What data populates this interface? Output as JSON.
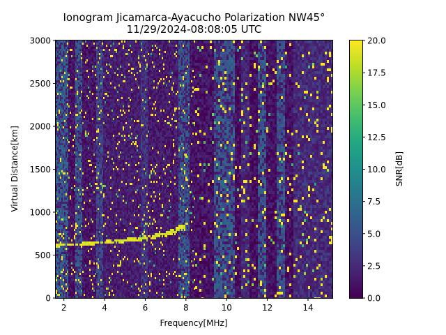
{
  "chart_data": {
    "type": "heatmap",
    "title": "Ionogram Jicamarca-Ayacucho Polarization NW45°",
    "subtitle": "11/29/2024-08:08:05 UTC",
    "xlabel": "Frequency[MHz]",
    "ylabel": "Virtual Distance[km]",
    "xlim": [
      1.6,
      15.2
    ],
    "ylim": [
      0,
      3000
    ],
    "xticks": [
      2,
      4,
      6,
      8,
      10,
      12,
      14
    ],
    "xtick_labels": [
      "2",
      "4",
      "6",
      "8",
      "10",
      "12",
      "14"
    ],
    "yticks": [
      0,
      500,
      1000,
      1500,
      2000,
      2500,
      3000
    ],
    "ytick_labels": [
      "0",
      "500",
      "1000",
      "1500",
      "2000",
      "2500",
      "3000"
    ],
    "colormap": "viridis",
    "colorbar": {
      "label": "SNR[dB]",
      "range": [
        0.0,
        20.0
      ],
      "ticks": [
        0.0,
        2.5,
        5.0,
        7.5,
        10.0,
        12.5,
        15.0,
        17.5,
        20.0
      ],
      "tick_labels": [
        "0.0",
        "2.5",
        "5.0",
        "7.5",
        "10.0",
        "12.5",
        "15.0",
        "17.5",
        "20.0"
      ]
    },
    "grid": false,
    "background_bands_mhz": [
      {
        "from": 1.6,
        "to": 2.2,
        "snr": 6.0
      },
      {
        "from": 2.2,
        "to": 2.55,
        "snr": 1.0
      },
      {
        "from": 2.55,
        "to": 2.9,
        "snr": 5.5
      },
      {
        "from": 2.9,
        "to": 3.6,
        "snr": 1.2
      },
      {
        "from": 3.6,
        "to": 3.95,
        "snr": 4.5
      },
      {
        "from": 3.95,
        "to": 5.8,
        "snr": 1.8
      },
      {
        "from": 5.8,
        "to": 6.15,
        "snr": 3.5
      },
      {
        "from": 6.15,
        "to": 7.6,
        "snr": 1.6
      },
      {
        "from": 7.6,
        "to": 8.2,
        "snr": 5.5
      },
      {
        "from": 8.2,
        "to": 9.35,
        "snr": 1.0
      },
      {
        "from": 9.35,
        "to": 10.4,
        "snr": 5.5
      },
      {
        "from": 10.4,
        "to": 10.75,
        "snr": 0.8
      },
      {
        "from": 10.75,
        "to": 11.1,
        "snr": 2.5
      },
      {
        "from": 11.1,
        "to": 11.5,
        "snr": 0.8
      },
      {
        "from": 11.5,
        "to": 11.9,
        "snr": 5.5
      },
      {
        "from": 11.9,
        "to": 12.45,
        "snr": 0.9
      },
      {
        "from": 12.45,
        "to": 12.9,
        "snr": 5.5
      },
      {
        "from": 12.9,
        "to": 13.3,
        "snr": 1.0
      },
      {
        "from": 13.3,
        "to": 15.2,
        "snr": 2.8
      }
    ],
    "echo_trace": {
      "description": "F-layer trace",
      "points": [
        [
          1.6,
          610
        ],
        [
          3.0,
          630
        ],
        [
          4.0,
          650
        ],
        [
          5.0,
          670
        ],
        [
          6.0,
          700
        ],
        [
          7.0,
          740
        ],
        [
          8.1,
          850
        ]
      ],
      "snr": 20.0
    }
  }
}
